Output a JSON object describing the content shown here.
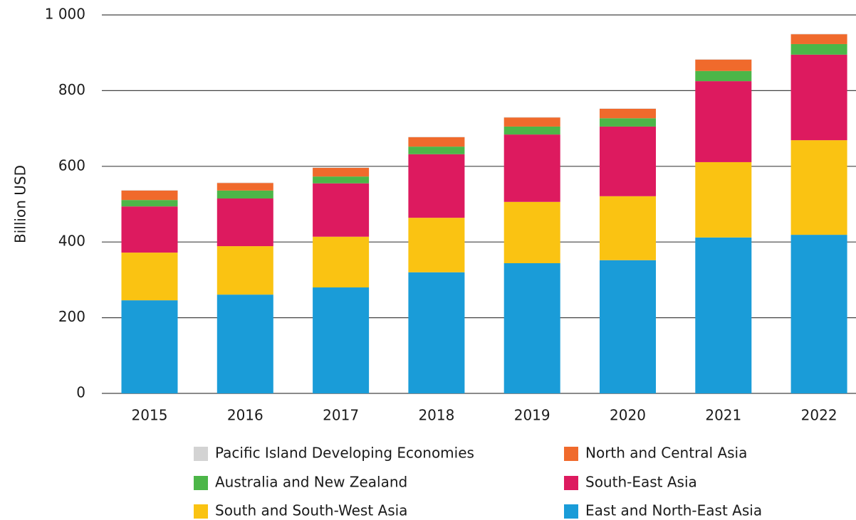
{
  "chart_data": {
    "type": "bar",
    "stacked": true,
    "y_label": "Billion USD",
    "categories": [
      "2015",
      "2016",
      "2017",
      "2018",
      "2019",
      "2020",
      "2021",
      "2022"
    ],
    "series": [
      {
        "name": "East and North-East Asia",
        "color": "#1a9cd8",
        "values": [
          246,
          261,
          280,
          320,
          344,
          352,
          412,
          419
        ]
      },
      {
        "name": "South and South-West Asia",
        "color": "#fac312",
        "values": [
          126,
          128,
          134,
          144,
          162,
          169,
          199,
          250
        ]
      },
      {
        "name": "South-East Asia",
        "color": "#dd1a5f",
        "values": [
          122,
          126,
          141,
          168,
          178,
          184,
          214,
          226
        ]
      },
      {
        "name": "Australia and New Zealand",
        "color": "#4cb648",
        "values": [
          17,
          21,
          18,
          20,
          21,
          22,
          27,
          28
        ]
      },
      {
        "name": "North and Central Asia",
        "color": "#f06a2c",
        "values": [
          25,
          20,
          23,
          25,
          24,
          25,
          30,
          26
        ]
      },
      {
        "name": "Pacific Island Developing Economies",
        "color": "#d3d3d3",
        "values": [
          1,
          1,
          1,
          1,
          1,
          1,
          1,
          1
        ]
      }
    ],
    "ylim": [
      0,
      1000
    ],
    "yticks": [
      0,
      200,
      400,
      600,
      800,
      {
        "value": 1000,
        "label": "1 000"
      }
    ],
    "grid": true
  }
}
